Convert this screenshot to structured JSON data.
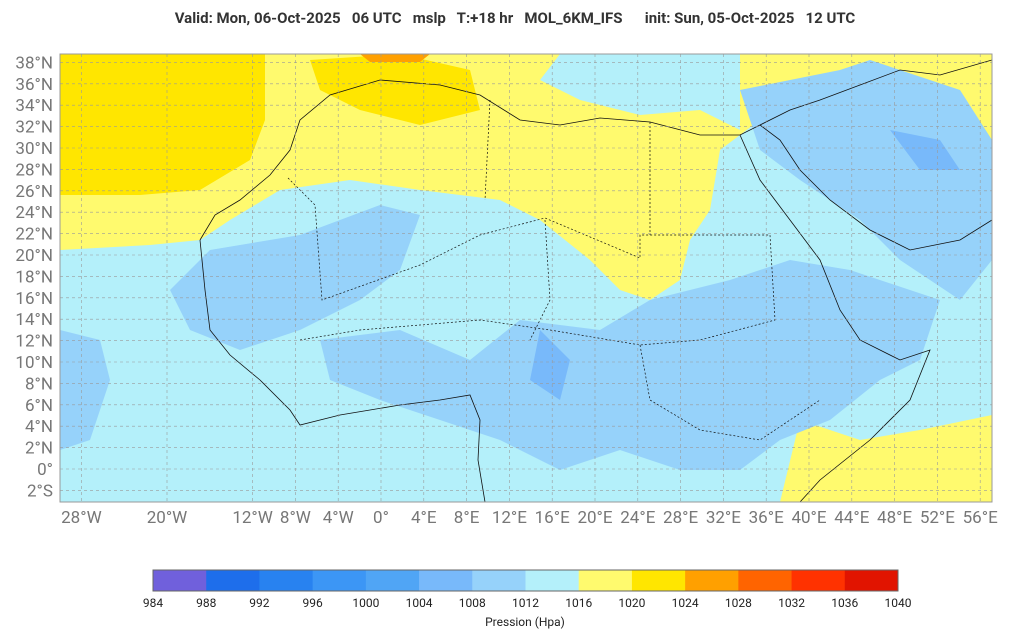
{
  "header": {
    "title": "Valid: Mon, 06-Oct-2025   06 UTC   mslp   T:+18 hr   MOL_6KM_IFS      init: Sun, 05-Oct-2025   12 UTC"
  },
  "map": {
    "lat_labels": [
      {
        "value": 38,
        "label": "38°N"
      },
      {
        "value": 36,
        "label": "36°N"
      },
      {
        "value": 34,
        "label": "34°N"
      },
      {
        "value": 32,
        "label": "32°N"
      },
      {
        "value": 30,
        "label": "30°N"
      },
      {
        "value": 28,
        "label": "28°N"
      },
      {
        "value": 26,
        "label": "26°N"
      },
      {
        "value": 24,
        "label": "24°N"
      },
      {
        "value": 22,
        "label": "22°N"
      },
      {
        "value": 20,
        "label": "20°N"
      },
      {
        "value": 18,
        "label": "18°N"
      },
      {
        "value": 16,
        "label": "16°N"
      },
      {
        "value": 14,
        "label": "14°N"
      },
      {
        "value": 12,
        "label": "12°N"
      },
      {
        "value": 10,
        "label": "10°N"
      },
      {
        "value": 8,
        "label": "8°N"
      },
      {
        "value": 6,
        "label": "6°N"
      },
      {
        "value": 4,
        "label": "4°N"
      },
      {
        "value": 2,
        "label": "2°N"
      },
      {
        "value": 0,
        "label": "0°"
      },
      {
        "value": -2,
        "label": "2°S"
      }
    ],
    "lon_labels": [
      {
        "value": -28,
        "label": "28°W"
      },
      {
        "value": -20,
        "label": "20°W"
      },
      {
        "value": -12,
        "label": "12°W"
      },
      {
        "value": -8,
        "label": "8°W"
      },
      {
        "value": -4,
        "label": "4°W"
      },
      {
        "value": 0,
        "label": "0°"
      },
      {
        "value": 4,
        "label": "4°E"
      },
      {
        "value": 8,
        "label": "8°E"
      },
      {
        "value": 12,
        "label": "12°E"
      },
      {
        "value": 16,
        "label": "16°E"
      },
      {
        "value": 20,
        "label": "20°E"
      },
      {
        "value": 24,
        "label": "24°E"
      },
      {
        "value": 28,
        "label": "28°E"
      },
      {
        "value": 32,
        "label": "32°E"
      },
      {
        "value": 36,
        "label": "36°E"
      },
      {
        "value": 40,
        "label": "40°E"
      },
      {
        "value": 44,
        "label": "44°E"
      },
      {
        "value": 48,
        "label": "48°E"
      },
      {
        "value": 52,
        "label": "52°E"
      },
      {
        "value": 56,
        "label": "56°E"
      }
    ]
  },
  "colorbar": {
    "ticks": [
      984,
      988,
      992,
      996,
      1000,
      1004,
      1008,
      1012,
      1016,
      1020,
      1024,
      1028,
      1032,
      1036,
      1040
    ],
    "colors": [
      "#7060dc",
      "#1e6eeb",
      "#2882f0",
      "#3c96f5",
      "#50a5f5",
      "#78b9fa",
      "#96d2fa",
      "#b4f0fa",
      "#fffa6e",
      "#ffe600",
      "#ffa000",
      "#ff6400",
      "#ff3200",
      "#e11400"
    ],
    "label": "Pression (Hpa)"
  }
}
